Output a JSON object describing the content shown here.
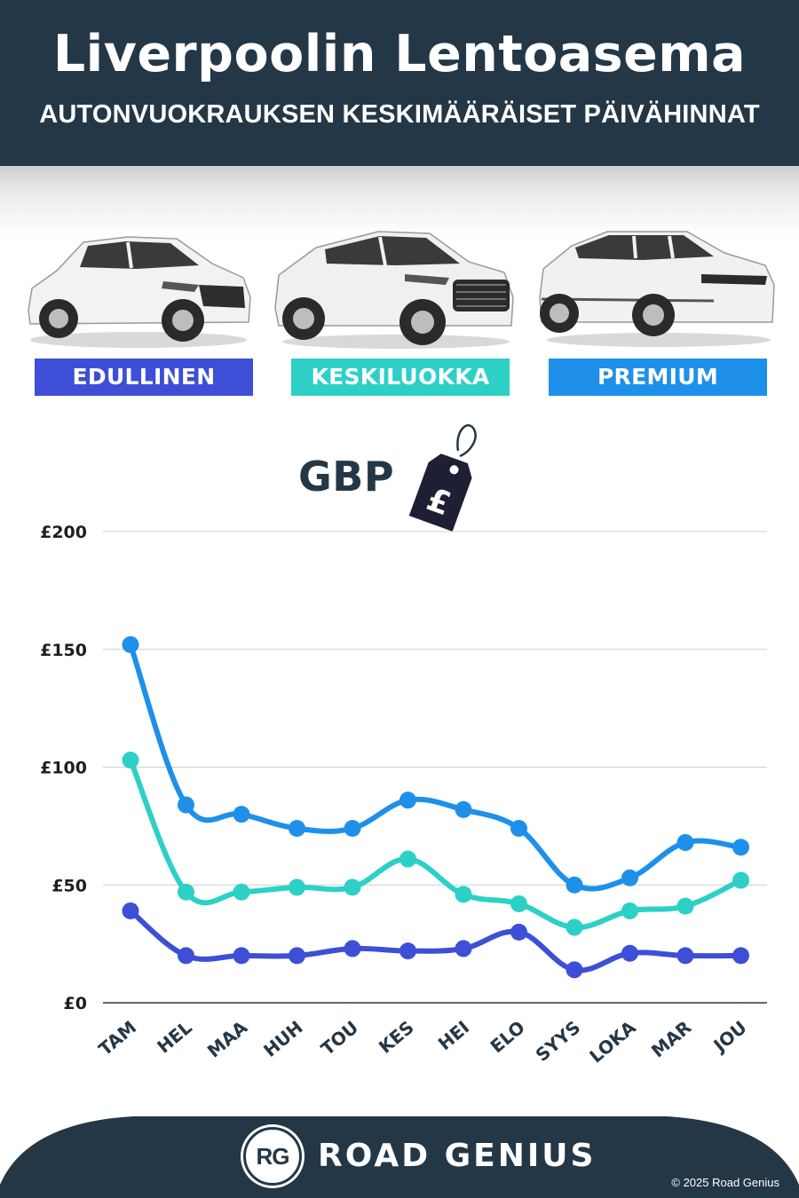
{
  "header": {
    "title": "Liverpoolin Lentoasema",
    "subtitle": "AUTONVUOKRAUKSEN KESKIMÄÄRÄISET PÄIVÄHINNAT"
  },
  "categories": [
    {
      "label": "EDULLINEN",
      "color": "#3d4fd6"
    },
    {
      "label": "KESKILUOKKA",
      "color": "#2cd0c6"
    },
    {
      "label": "PREMIUM",
      "color": "#1e90ea"
    }
  ],
  "currency": {
    "label": "GBP",
    "symbol": "£"
  },
  "chart_data": {
    "type": "line",
    "categories": [
      "TAM",
      "HEL",
      "MAA",
      "HUH",
      "TOU",
      "KES",
      "HEI",
      "ELO",
      "SYYS",
      "LOKA",
      "MAR",
      "JOU"
    ],
    "series": [
      {
        "name": "PREMIUM",
        "color": "#1e90ea",
        "values": [
          152,
          84,
          80,
          74,
          74,
          86,
          82,
          74,
          50,
          53,
          68,
          66
        ]
      },
      {
        "name": "KESKILUOKKA",
        "color": "#2cd0c6",
        "values": [
          103,
          47,
          47,
          49,
          49,
          61,
          46,
          42,
          32,
          39,
          41,
          52
        ]
      },
      {
        "name": "EDULLINEN",
        "color": "#3d4fd6",
        "values": [
          39,
          20,
          20,
          20,
          23,
          22,
          23,
          30,
          14,
          21,
          20,
          20
        ]
      }
    ],
    "yticks": [
      0,
      50,
      100,
      150,
      200
    ],
    "ytick_labels": [
      "£0",
      "£50",
      "£100",
      "£150",
      "£200"
    ],
    "ylim": [
      0,
      200
    ],
    "grid": true
  },
  "footer": {
    "logo_text": "RG",
    "brand": "ROAD GENIUS",
    "copyright": "© 2025 Road Genius"
  }
}
